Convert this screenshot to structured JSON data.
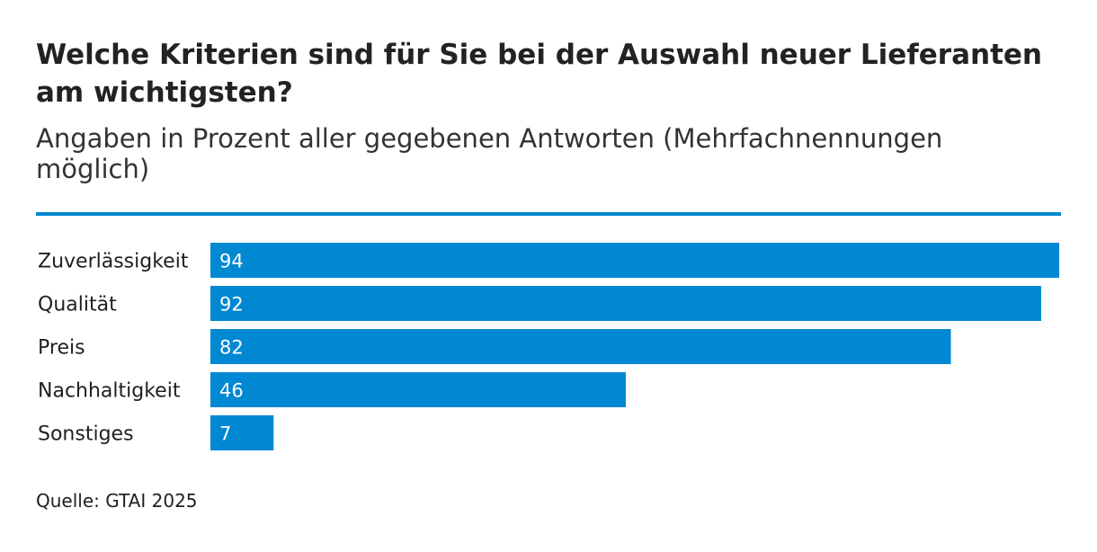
{
  "colors": {
    "accent": "#0088d2",
    "text": "#1f1f1f",
    "value_text": "#ffffff"
  },
  "source": "Quelle: GTAI 2025",
  "chart_data": {
    "type": "bar",
    "orientation": "horizontal",
    "title": "Welche Kriterien sind für Sie bei der Auswahl neuer Lieferanten am wichtigsten?",
    "subtitle": "Angaben in Prozent aller gegebenen Antworten (Mehrfachnennungen möglich)",
    "categories": [
      "Zuverlässigkeit",
      "Qualität",
      "Preis",
      "Nachhaltigkeit",
      "Sonstiges"
    ],
    "values": [
      94,
      92,
      82,
      46,
      7
    ],
    "xlim": [
      0,
      94
    ],
    "grid": false,
    "legend": "none"
  }
}
